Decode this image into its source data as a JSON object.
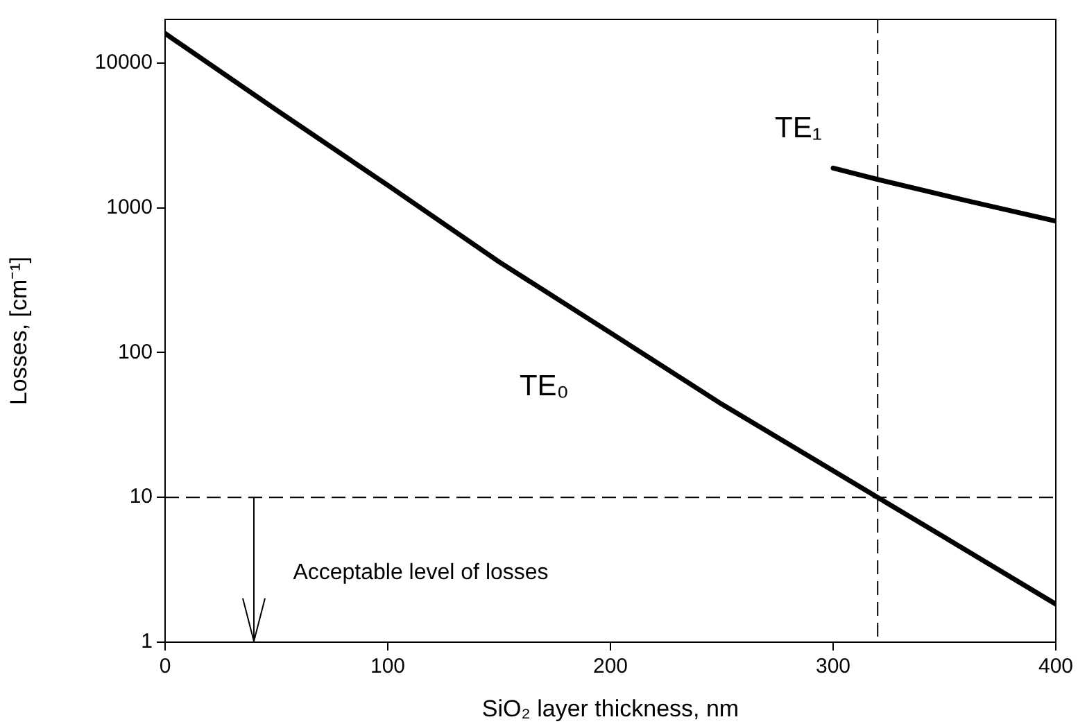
{
  "chart_data": {
    "type": "line",
    "xlabel": "SiO₂ layer thickness, nm",
    "ylabel": "Losses, [cm⁻¹]",
    "xlim": [
      0,
      400
    ],
    "xticks": [
      0,
      100,
      200,
      300,
      400
    ],
    "ylim": [
      1,
      20000
    ],
    "yticks": [
      1,
      10,
      100,
      1000,
      10000
    ],
    "log": "y",
    "grid": false,
    "legend": false,
    "marker": "none",
    "line_style": "solid",
    "series": [
      {
        "name": "TE₀",
        "color": "#000000",
        "x": [
          0,
          50,
          100,
          150,
          200,
          250,
          300,
          320,
          350,
          400
        ],
        "values": [
          16000,
          4730,
          1430,
          423,
          137,
          44,
          15.3,
          10,
          5.3,
          1.83
        ]
      },
      {
        "name": "TE₁",
        "color": "#000000",
        "x": [
          300,
          320,
          360,
          400
        ],
        "values": [
          1880,
          1570,
          1120,
          810
        ]
      }
    ],
    "ref_lines": [
      {
        "axis": "y",
        "value": 10,
        "line_style": "dashed",
        "color": "#000000"
      },
      {
        "axis": "x",
        "value": 320,
        "line_style": "dashed",
        "color": "#000000"
      }
    ],
    "annotations": [
      "Acceptable level of losses"
    ]
  }
}
